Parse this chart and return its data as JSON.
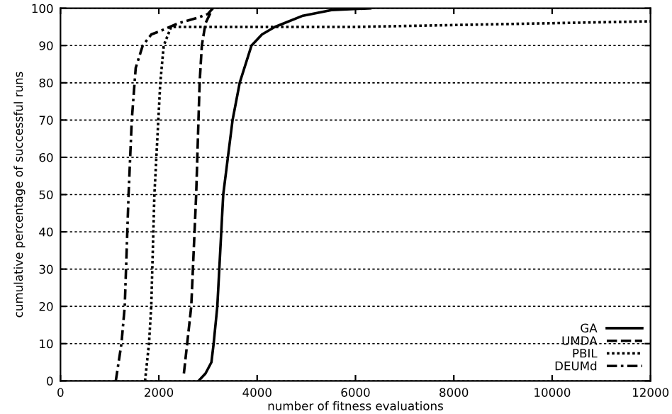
{
  "chart_data": {
    "type": "line",
    "xlabel": "number of fitness evaluations",
    "ylabel": "cumulative percentage of successful runs",
    "xlim": [
      0,
      12000
    ],
    "ylim": [
      0,
      100
    ],
    "xticks": [
      0,
      2000,
      4000,
      6000,
      8000,
      10000,
      12000
    ],
    "yticks": [
      0,
      10,
      20,
      30,
      40,
      50,
      60,
      70,
      80,
      90,
      100
    ],
    "grid": "y",
    "legend": "bottom right",
    "marker": "none",
    "series": [
      {
        "name": "GA",
        "color": "#000000",
        "line_style": "solid",
        "x": [
          2810,
          2950,
          3070,
          3115,
          3190,
          3310,
          3500,
          3645,
          3885,
          4100,
          4360,
          4930,
          5510,
          6300
        ],
        "values": [
          0,
          2,
          5,
          10,
          20,
          50,
          70,
          80,
          90,
          93,
          95,
          98,
          99.5,
          100
        ]
      },
      {
        "name": "UMDA",
        "color": "#000000",
        "line_style": "dashed",
        "x": [
          2510,
          2660,
          2760,
          2830,
          2875,
          2950,
          3095
        ],
        "values": [
          2,
          20,
          50,
          80,
          90,
          96,
          100
        ]
      },
      {
        "name": "PBIL",
        "color": "#000000",
        "line_style": "dotted",
        "x": [
          1720,
          1800,
          1846,
          1910,
          2030,
          2100,
          2250,
          4000,
          6000,
          8000,
          10000,
          12000
        ],
        "values": [
          0,
          10,
          20,
          50,
          80,
          90,
          95,
          95,
          95,
          95.5,
          96,
          96.5
        ]
      },
      {
        "name": "DEUMd",
        "color": "#000000",
        "line_style": "dashdot",
        "x": [
          1125,
          1240,
          1307,
          1385,
          1450,
          1530,
          1673,
          1850,
          2048,
          2400,
          2800,
          3000,
          3100
        ],
        "values": [
          0,
          10,
          20,
          50,
          70,
          84,
          90,
          93,
          94,
          96,
          97.5,
          98.5,
          100
        ]
      }
    ]
  }
}
